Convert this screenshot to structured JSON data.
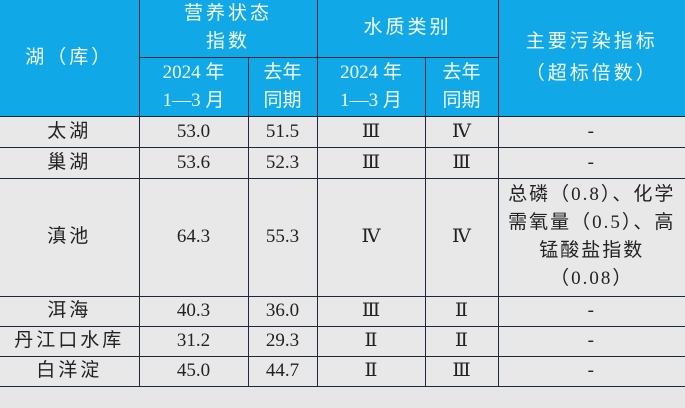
{
  "header": {
    "lake": "湖（库）",
    "trophic_index": "营养状态\n指数",
    "water_class": "水质类别",
    "pollutants": "主要污染指标\n（超标倍数）",
    "period_current": "2024 年\n1—3 月",
    "period_last_year": "去年\n同期"
  },
  "rows": [
    {
      "lake": "太湖",
      "tsi_2024": "53.0",
      "tsi_last": "51.5",
      "class_2024": "Ⅲ",
      "class_last": "Ⅳ",
      "pollutants": "-"
    },
    {
      "lake": "巢湖",
      "tsi_2024": "53.6",
      "tsi_last": "52.3",
      "class_2024": "Ⅲ",
      "class_last": "Ⅲ",
      "pollutants": "-"
    },
    {
      "lake": "滇池",
      "tsi_2024": "64.3",
      "tsi_last": "55.3",
      "class_2024": "Ⅳ",
      "class_last": "Ⅳ",
      "pollutants": "总磷（0.8）、化学需氧量（0.5）、高锰酸盐指数（0.08）"
    },
    {
      "lake": "洱海",
      "tsi_2024": "40.3",
      "tsi_last": "36.0",
      "class_2024": "Ⅲ",
      "class_last": "Ⅱ",
      "pollutants": "-"
    },
    {
      "lake": "丹江口水库",
      "tsi_2024": "31.2",
      "tsi_last": "29.3",
      "class_2024": "Ⅱ",
      "class_last": "Ⅱ",
      "pollutants": "-"
    },
    {
      "lake": "白洋淀",
      "tsi_2024": "45.0",
      "tsi_last": "44.7",
      "class_2024": "Ⅱ",
      "class_last": "Ⅲ",
      "pollutants": "-"
    }
  ],
  "colors": {
    "header_bg": "#10a8e6",
    "body_bg": "#e8e8e8",
    "border": "#1e2a3a"
  }
}
